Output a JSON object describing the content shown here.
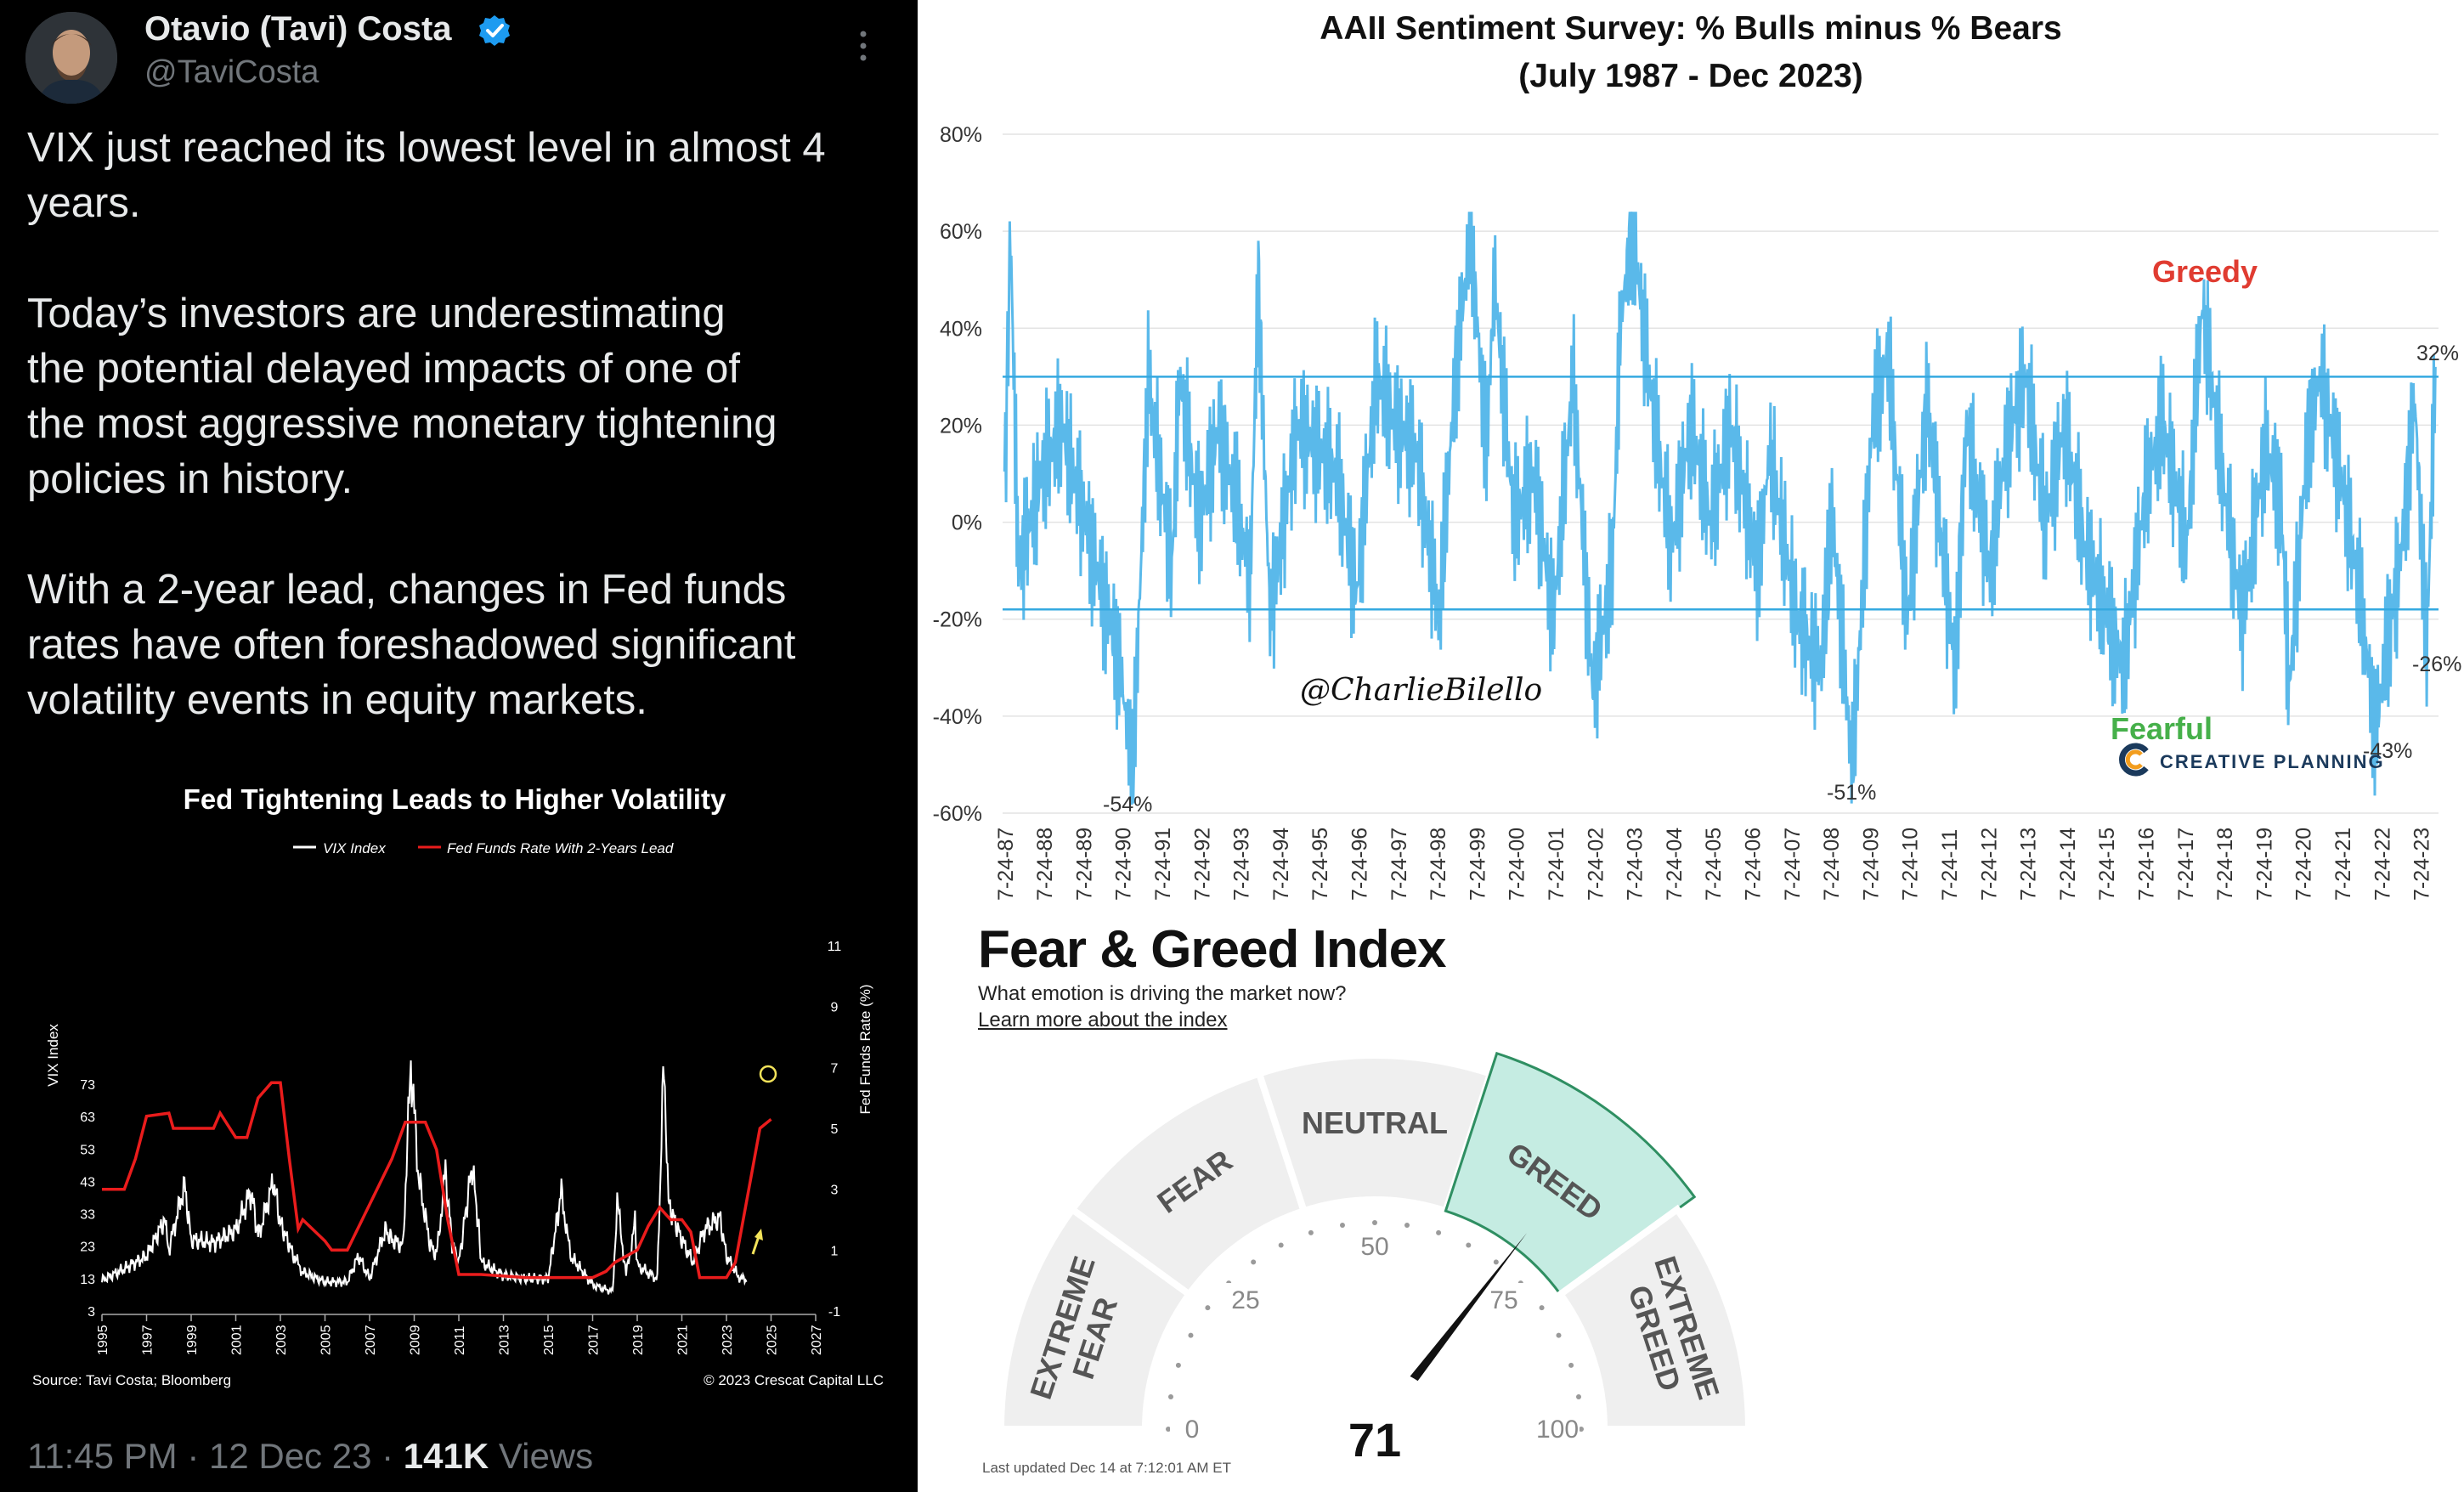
{
  "tweet": {
    "author_name": "Otavio (Tavi) Costa",
    "handle": "@TaviCosta",
    "paragraphs": [
      "VIX just reached its lowest level in almost 4\nyears.",
      "Today’s investors are underestimating\nthe potential delayed impacts of one of\nthe most aggressive monetary tightening\npolicies in history.",
      "With a 2-year lead, changes in Fed funds\nrates have often foreshadowed significant\nvolatility events in equity markets."
    ],
    "time": "11:45 PM",
    "date": "12 Dec 23",
    "views_count": "141K",
    "views_label": "Views",
    "icons": {
      "verified": "verified-badge-icon",
      "more": "more-options-icon"
    },
    "colors": {
      "background": "#000000",
      "text": "#e7e9ea",
      "muted": "#71767b",
      "verified": "#1d9bf0"
    }
  },
  "fed_chart": {
    "chart_data": {
      "type": "line",
      "title": "Fed Tightening Leads to Higher Volatility",
      "legend": [
        "VIX Index",
        "Fed Funds Rate With 2-Years Lead"
      ],
      "legend_position": "top",
      "ylabel_left": "VIX Index",
      "ylabel_right": "Fed Funds Rate (%)",
      "y_left_ticks": [
        3,
        13,
        23,
        33,
        43,
        53,
        63,
        73
      ],
      "y_right_ticks": [
        -1,
        1,
        3,
        5,
        7,
        9,
        11
      ],
      "x_ticks": [
        "1995",
        "1997",
        "1999",
        "2001",
        "2003",
        "2005",
        "2007",
        "2009",
        "2011",
        "2013",
        "2015",
        "2017",
        "2019",
        "2021",
        "2023",
        "2025",
        "2027"
      ],
      "xlim": [
        1995,
        2027
      ],
      "series": [
        {
          "name": "VIX Index",
          "color": "#ffffff",
          "points": [
            [
              1995,
              12.5
            ],
            [
              1996,
              16
            ],
            [
              1997,
              20
            ],
            [
              1997.8,
              31
            ],
            [
              1998,
              22
            ],
            [
              1998.7,
              42
            ],
            [
              1999,
              25
            ],
            [
              2000,
              24
            ],
            [
              2001,
              28
            ],
            [
              2001.7,
              40
            ],
            [
              2002,
              26
            ],
            [
              2002.7,
              43
            ],
            [
              2003,
              30
            ],
            [
              2003.6,
              20
            ],
            [
              2004,
              15
            ],
            [
              2005,
              12
            ],
            [
              2006,
              12
            ],
            [
              2006.5,
              20
            ],
            [
              2007,
              13
            ],
            [
              2007.7,
              28
            ],
            [
              2008,
              25
            ],
            [
              2008.5,
              23
            ],
            [
              2008.85,
              80
            ],
            [
              2009.2,
              44
            ],
            [
              2009.7,
              24
            ],
            [
              2010,
              20
            ],
            [
              2010.4,
              46
            ],
            [
              2010.7,
              24
            ],
            [
              2011,
              18
            ],
            [
              2011.6,
              48
            ],
            [
              2011.9,
              28
            ],
            [
              2012,
              18
            ],
            [
              2013,
              14
            ],
            [
              2014,
              13
            ],
            [
              2015,
              13
            ],
            [
              2015.6,
              40
            ],
            [
              2016,
              20
            ],
            [
              2016.8,
              13
            ],
            [
              2017,
              11
            ],
            [
              2017.9,
              9
            ],
            [
              2018.1,
              37
            ],
            [
              2018.5,
              14
            ],
            [
              2018.9,
              30
            ],
            [
              2019,
              17
            ],
            [
              2019.9,
              13
            ],
            [
              2020.2,
              82
            ],
            [
              2020.4,
              36
            ],
            [
              2021,
              25
            ],
            [
              2021.5,
              18
            ],
            [
              2022,
              28
            ],
            [
              2022.7,
              32
            ],
            [
              2023,
              20
            ],
            [
              2023.5,
              14
            ],
            [
              2023.9,
              12
            ]
          ]
        },
        {
          "name": "Fed Funds Rate With 2-Years Lead",
          "color": "#ea1c1c",
          "points": [
            [
              1995,
              3
            ],
            [
              1996,
              3
            ],
            [
              1996.5,
              4
            ],
            [
              1997,
              5.4
            ],
            [
              1998,
              5.5
            ],
            [
              1998.2,
              5
            ],
            [
              1999,
              5
            ],
            [
              2000,
              5
            ],
            [
              2000.3,
              5.5
            ],
            [
              2001,
              4.7
            ],
            [
              2001.5,
              4.7
            ],
            [
              2002,
              6
            ],
            [
              2002.6,
              6.5
            ],
            [
              2003,
              6.5
            ],
            [
              2003.4,
              4
            ],
            [
              2003.8,
              1.7
            ],
            [
              2004,
              2
            ],
            [
              2005,
              1.3
            ],
            [
              2005.3,
              1
            ],
            [
              2006,
              1
            ],
            [
              2007,
              2.5
            ],
            [
              2008,
              4
            ],
            [
              2008.6,
              5.2
            ],
            [
              2009.5,
              5.2
            ],
            [
              2010,
              4.3
            ],
            [
              2010.5,
              2
            ],
            [
              2011,
              0.2
            ],
            [
              2012,
              0.2
            ],
            [
              2014,
              0.1
            ],
            [
              2015,
              0.1
            ],
            [
              2016,
              0.1
            ],
            [
              2017,
              0.1
            ],
            [
              2017.6,
              0.3
            ],
            [
              2018,
              0.6
            ],
            [
              2019,
              1
            ],
            [
              2019.5,
              1.8
            ],
            [
              2020,
              2.4
            ],
            [
              2020.5,
              2
            ],
            [
              2021,
              2
            ],
            [
              2021.4,
              1.6
            ],
            [
              2021.8,
              0.1
            ],
            [
              2023,
              0.1
            ],
            [
              2023.4,
              0.6
            ],
            [
              2024,
              3
            ],
            [
              2024.5,
              5
            ],
            [
              2025,
              5.3
            ]
          ]
        }
      ],
      "annotations": [
        "Source: Tavi Costa; Bloomberg",
        "© 2023 Crescat Capital LLC"
      ]
    }
  },
  "aaii": {
    "chart_data": {
      "type": "line",
      "title": "AAII Sentiment Survey: % Bulls minus % Bears",
      "subtitle": "(July 1987 - Dec 2023)",
      "y_ticks": [
        "80%",
        "60%",
        "40%",
        "20%",
        "0%",
        "-20%",
        "-40%",
        "-60%"
      ],
      "ylim": [
        -60,
        80
      ],
      "x_ticks": [
        "7-24-87",
        "7-24-88",
        "7-24-89",
        "7-24-90",
        "7-24-91",
        "7-24-92",
        "7-24-93",
        "7-24-94",
        "7-24-95",
        "7-24-96",
        "7-24-97",
        "7-24-98",
        "7-24-99",
        "7-24-00",
        "7-24-01",
        "7-24-02",
        "7-24-03",
        "7-24-04",
        "7-24-05",
        "7-24-06",
        "7-24-07",
        "7-24-08",
        "7-24-09",
        "7-24-10",
        "7-24-11",
        "7-24-12",
        "7-24-13",
        "7-24-14",
        "7-24-15",
        "7-24-16",
        "7-24-17",
        "7-24-18",
        "7-24-19",
        "7-24-20",
        "7-24-21",
        "7-24-22",
        "7-24-23"
      ],
      "xlim": [
        1987.5,
        2024
      ],
      "thresholds": [
        30,
        -18
      ],
      "threshold_color": "#35a9e0",
      "series_color": "#5ab9ea",
      "series": [
        {
          "values": [
            [
              1987.55,
              5
            ],
            [
              1987.7,
              60
            ],
            [
              1987.9,
              -10
            ],
            [
              1988.5,
              10
            ],
            [
              1989,
              20
            ],
            [
              1989.6,
              0
            ],
            [
              1990.5,
              -30
            ],
            [
              1990.8,
              -54
            ],
            [
              1991.2,
              30
            ],
            [
              1991.8,
              -10
            ],
            [
              1992,
              30
            ],
            [
              1992.5,
              0
            ],
            [
              1993,
              20
            ],
            [
              1993.8,
              -10
            ],
            [
              1994,
              50
            ],
            [
              1994.3,
              -20
            ],
            [
              1995,
              20
            ],
            [
              1996,
              10
            ],
            [
              1996.5,
              -15
            ],
            [
              1997,
              30
            ],
            [
              1997.5,
              20
            ],
            [
              1998,
              15
            ],
            [
              1998.6,
              -20
            ],
            [
              1999,
              30
            ],
            [
              1999.4,
              60
            ],
            [
              1999.8,
              15
            ],
            [
              2000,
              50
            ],
            [
              2000.5,
              0
            ],
            [
              2001,
              10
            ],
            [
              2001.5,
              -20
            ],
            [
              2002,
              30
            ],
            [
              2002.5,
              -35
            ],
            [
              2003,
              -10
            ],
            [
              2003.2,
              40
            ],
            [
              2003.5,
              62
            ],
            [
              2004,
              25
            ],
            [
              2004.5,
              -5
            ],
            [
              2005,
              20
            ],
            [
              2005.5,
              0
            ],
            [
              2006,
              20
            ],
            [
              2006.7,
              -10
            ],
            [
              2007,
              15
            ],
            [
              2007.7,
              -20
            ],
            [
              2008.3,
              -30
            ],
            [
              2008.6,
              0
            ],
            [
              2009.1,
              -51
            ],
            [
              2009.6,
              20
            ],
            [
              2010,
              35
            ],
            [
              2010.5,
              -20
            ],
            [
              2011,
              25
            ],
            [
              2011.7,
              -30
            ],
            [
              2012,
              20
            ],
            [
              2012.6,
              -10
            ],
            [
              2013,
              15
            ],
            [
              2013.5,
              30
            ],
            [
              2014,
              0
            ],
            [
              2014.5,
              20
            ],
            [
              2015,
              -5
            ],
            [
              2015.6,
              -20
            ],
            [
              2016,
              -30
            ],
            [
              2016.6,
              10
            ],
            [
              2017,
              20
            ],
            [
              2017.6,
              -5
            ],
            [
              2018,
              45
            ],
            [
              2018.5,
              10
            ],
            [
              2019,
              -20
            ],
            [
              2019.6,
              15
            ],
            [
              2020,
              5
            ],
            [
              2020.2,
              -35
            ],
            [
              2020.7,
              20
            ],
            [
              2021,
              30
            ],
            [
              2021.5,
              10
            ],
            [
              2022,
              -15
            ],
            [
              2022.4,
              -43
            ],
            [
              2022.8,
              -20
            ],
            [
              2023,
              -10
            ],
            [
              2023.4,
              25
            ],
            [
              2023.7,
              -26
            ],
            [
              2023.92,
              32
            ]
          ]
        }
      ],
      "annotations": [
        "Greedy",
        "Fearful",
        "32%",
        "-26%",
        "-43%",
        "-54%",
        "-51%",
        "@CharlieBilello"
      ],
      "annotation_colors": {
        "Greedy": "#e03c31",
        "Fearful": "#46b04a"
      },
      "logo_text": "CREATIVE PLANNING"
    }
  },
  "fear_greed": {
    "title": "Fear & Greed Index",
    "subtitle": "What emotion is driving the market now?",
    "link": "Learn more about the index",
    "value": 71,
    "segments": [
      "EXTREME FEAR",
      "FEAR",
      "NEUTRAL",
      "GREED",
      "EXTREME GREED"
    ],
    "active_segment": "GREED",
    "scale_labels": [
      "0",
      "25",
      "50",
      "75",
      "100"
    ],
    "last_updated": "Last updated Dec 14 at 7:12:01 AM ET",
    "colors": {
      "active_fill": "#c5ece2",
      "active_stroke": "#2f8f62",
      "inactive": "#efefef",
      "needle": "#111111"
    }
  }
}
